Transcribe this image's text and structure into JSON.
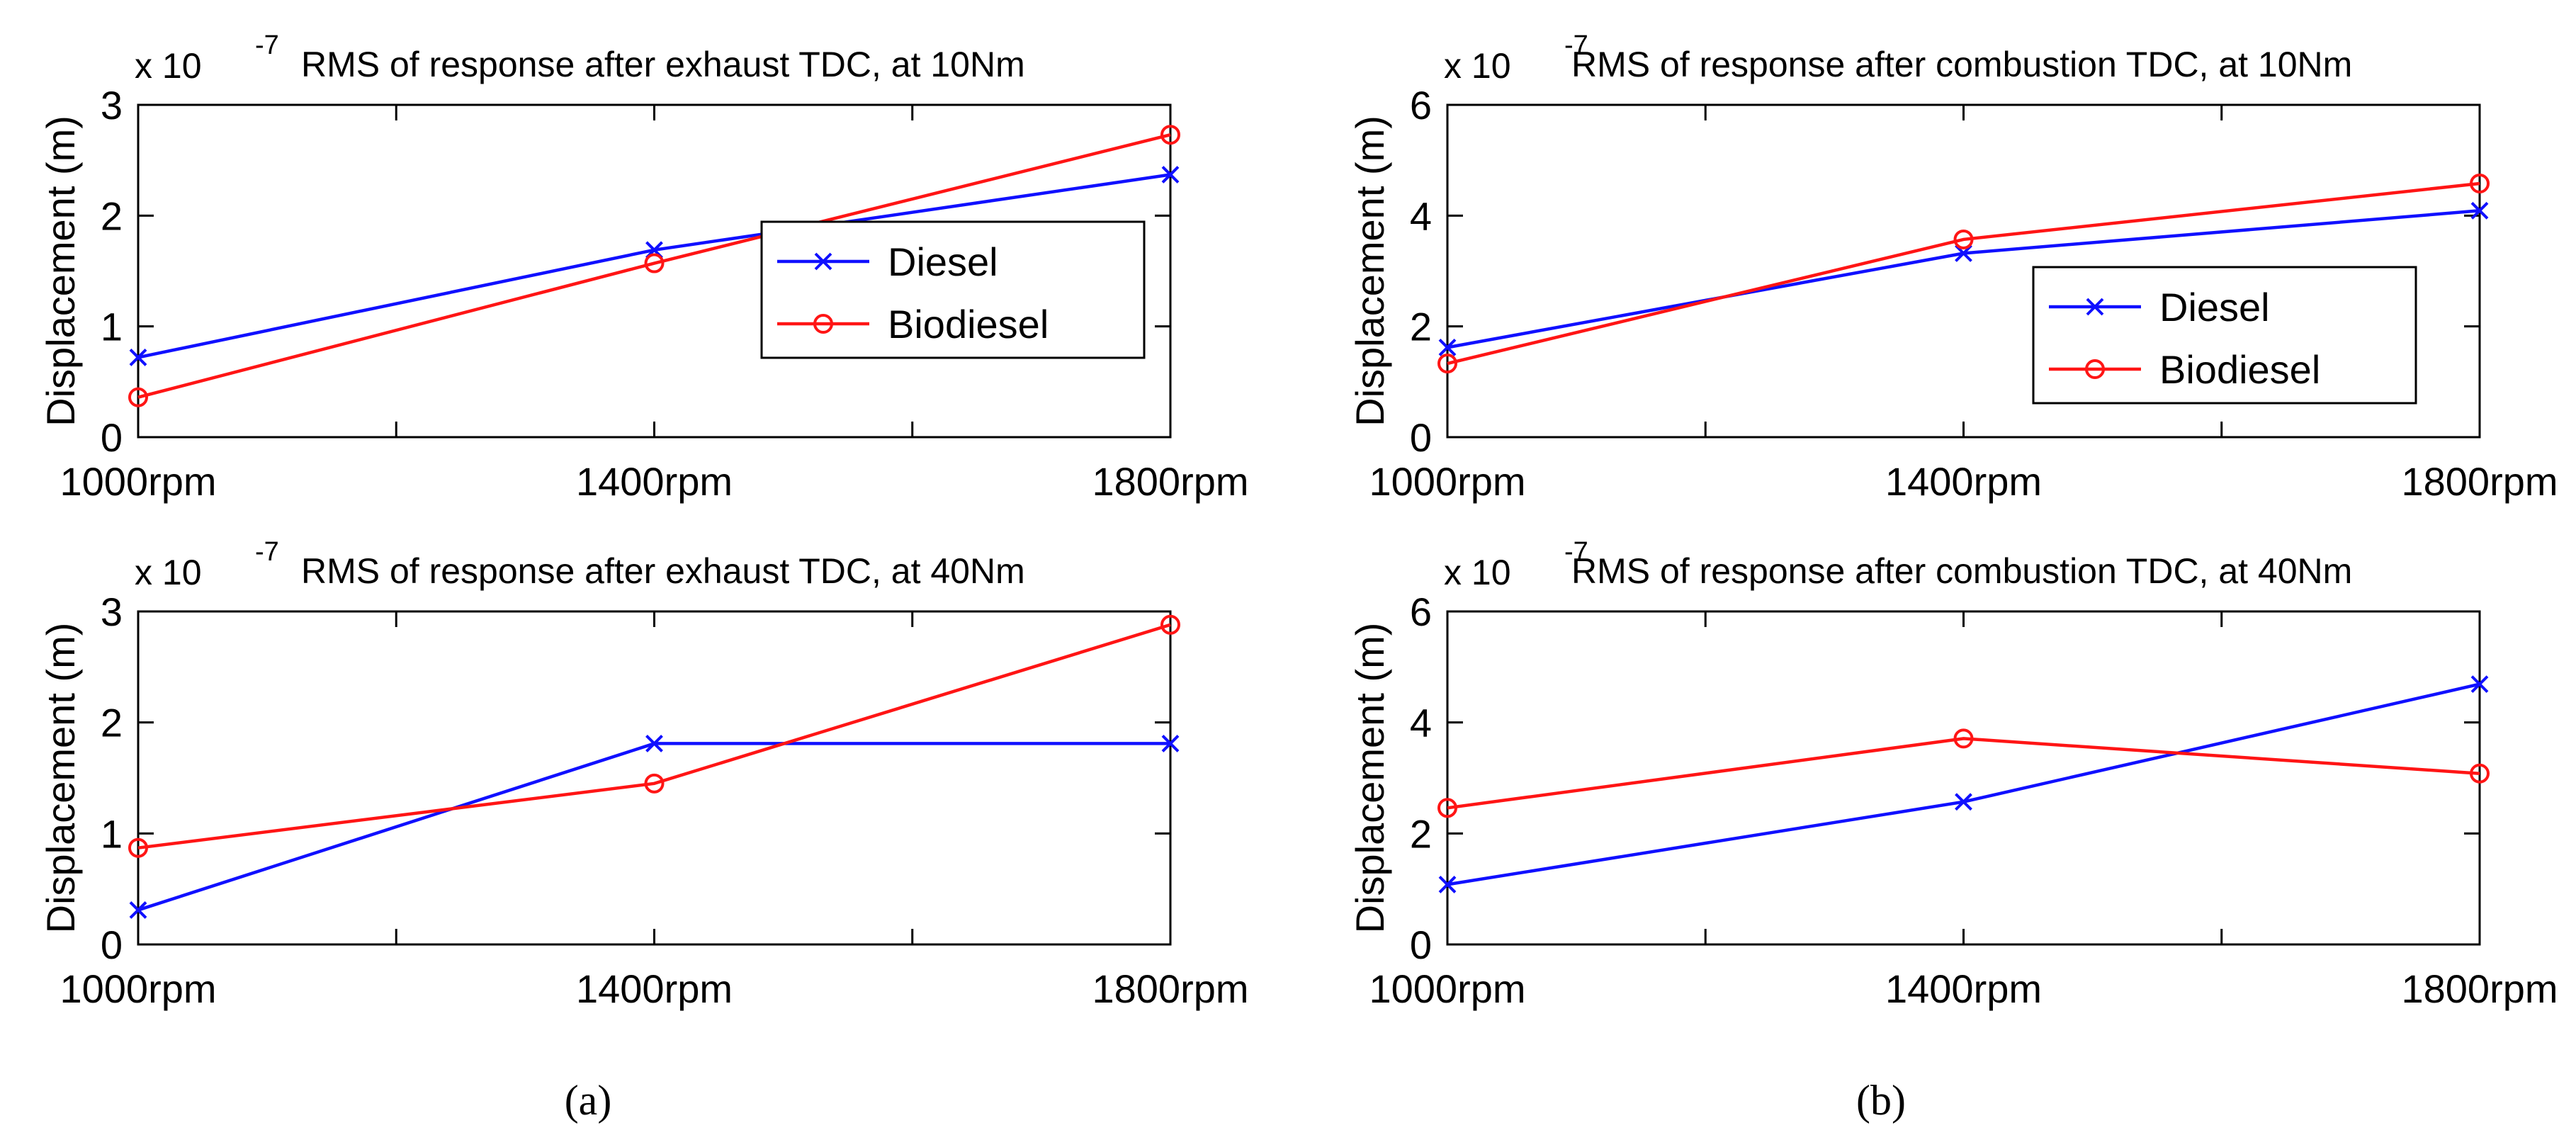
{
  "colors": {
    "diesel": "#1010ff",
    "biodiesel": "#ff1515",
    "axis": "#000000",
    "background": "#ffffff"
  },
  "captions": {
    "left": "(a)",
    "right": "(b)"
  },
  "chart_data": [
    {
      "type": "line",
      "title": "RMS of response after exhaust TDC, at 10Nm",
      "xlabel": "",
      "ylabel": "Displacement (m)",
      "y_multiplier_base": "x 10",
      "y_multiplier_exp": "-7",
      "categories": [
        "1000rpm",
        "1400rpm",
        "1800rpm"
      ],
      "xlim": [
        1000,
        1800
      ],
      "x_minor_ticks": [
        1200,
        1600
      ],
      "ylim": [
        0,
        3
      ],
      "yticks": [
        0,
        1,
        2,
        3
      ],
      "ytick_labels": [
        "0",
        "1",
        "2",
        "3"
      ],
      "legend": true,
      "legend_position": "lower-right",
      "series": [
        {
          "name": "Diesel",
          "marker": "x",
          "x": [
            1000,
            1400,
            1800
          ],
          "values": [
            0.72,
            1.69,
            2.37
          ]
        },
        {
          "name": "Biodiesel",
          "marker": "o",
          "x": [
            1000,
            1400,
            1800
          ],
          "values": [
            0.36,
            1.57,
            2.73
          ]
        }
      ]
    },
    {
      "type": "line",
      "title": "RMS of response after combustion TDC, at 10Nm",
      "xlabel": "",
      "ylabel": "Displacement (m)",
      "y_multiplier_base": "x 10",
      "y_multiplier_exp": "-7",
      "categories": [
        "1000rpm",
        "1400rpm",
        "1800rpm"
      ],
      "xlim": [
        1000,
        1800
      ],
      "x_minor_ticks": [
        1200,
        1600
      ],
      "ylim": [
        0,
        6
      ],
      "yticks": [
        0,
        2,
        4,
        6
      ],
      "ytick_labels": [
        "0",
        "2",
        "4",
        "6"
      ],
      "legend": true,
      "legend_position": "lower-right",
      "series": [
        {
          "name": "Diesel",
          "marker": "x",
          "x": [
            1000,
            1400,
            1800
          ],
          "values": [
            1.62,
            3.32,
            4.09
          ]
        },
        {
          "name": "Biodiesel",
          "marker": "o",
          "x": [
            1000,
            1400,
            1800
          ],
          "values": [
            1.33,
            3.57,
            4.58
          ]
        }
      ]
    },
    {
      "type": "line",
      "title": "RMS of response after exhaust TDC, at 40Nm",
      "xlabel": "",
      "ylabel": "Displacement (m)",
      "y_multiplier_base": "x 10",
      "y_multiplier_exp": "-7",
      "categories": [
        "1000rpm",
        "1400rpm",
        "1800rpm"
      ],
      "xlim": [
        1000,
        1800
      ],
      "x_minor_ticks": [
        1200,
        1600
      ],
      "ylim": [
        0,
        3
      ],
      "yticks": [
        0,
        1,
        2,
        3
      ],
      "ytick_labels": [
        "0",
        "1",
        "2",
        "3"
      ],
      "legend": false,
      "series": [
        {
          "name": "Diesel",
          "marker": "x",
          "x": [
            1000,
            1400,
            1800
          ],
          "values": [
            0.31,
            1.81,
            1.81
          ]
        },
        {
          "name": "Biodiesel",
          "marker": "o",
          "x": [
            1000,
            1400,
            1800
          ],
          "values": [
            0.87,
            1.45,
            2.88
          ]
        }
      ]
    },
    {
      "type": "line",
      "title": "RMS of response after combustion TDC, at 40Nm",
      "xlabel": "",
      "ylabel": "Displacement (m)",
      "y_multiplier_base": "x 10",
      "y_multiplier_exp": "-7",
      "categories": [
        "1000rpm",
        "1400rpm",
        "1800rpm"
      ],
      "xlim": [
        1000,
        1800
      ],
      "x_minor_ticks": [
        1200,
        1600
      ],
      "ylim": [
        0,
        6
      ],
      "yticks": [
        0,
        2,
        4,
        6
      ],
      "ytick_labels": [
        "0",
        "2",
        "4",
        "6"
      ],
      "legend": false,
      "series": [
        {
          "name": "Diesel",
          "marker": "x",
          "x": [
            1000,
            1400,
            1800
          ],
          "values": [
            1.08,
            2.57,
            4.69
          ]
        },
        {
          "name": "Biodiesel",
          "marker": "o",
          "x": [
            1000,
            1400,
            1800
          ],
          "values": [
            2.46,
            3.71,
            3.08
          ]
        }
      ]
    }
  ]
}
